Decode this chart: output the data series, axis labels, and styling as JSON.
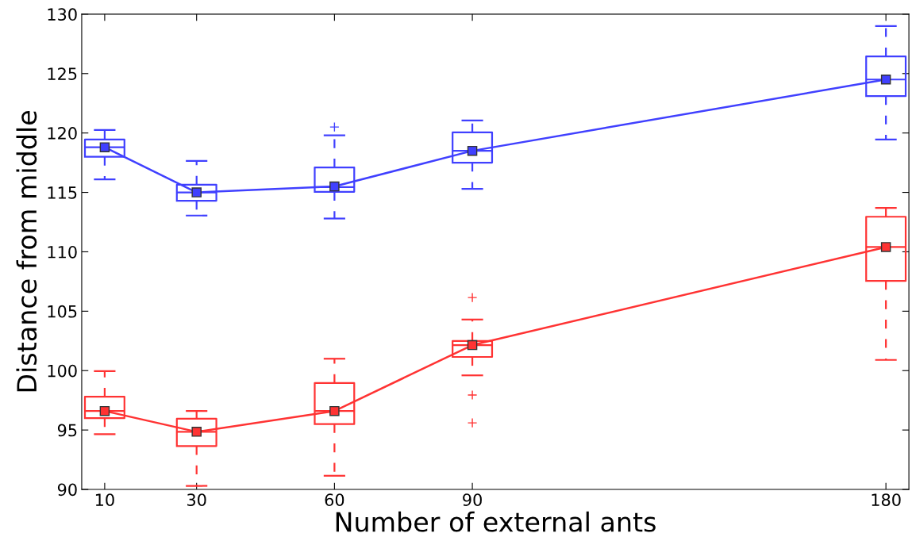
{
  "chart_data": {
    "type": "box",
    "xlabel": "Number of external ants",
    "ylabel": "Distance from middle",
    "xlim": [
      5,
      185
    ],
    "xticks": [
      10,
      30,
      60,
      90,
      180
    ],
    "ylim": [
      90,
      130
    ],
    "yticks": [
      90,
      95,
      100,
      105,
      110,
      115,
      120,
      125,
      130
    ],
    "grid": false,
    "legend": false,
    "marker": "square",
    "line_style": "solid",
    "series": [
      {
        "color": "#4040ff",
        "x": [
          10,
          30,
          60,
          90,
          180
        ],
        "boxes": [
          {
            "low": 116.1,
            "q1": 118.0,
            "median": 118.8,
            "q3": 119.45,
            "high": 120.25
          },
          {
            "low": 113.05,
            "q1": 114.3,
            "median": 115.0,
            "q3": 115.65,
            "high": 117.65
          },
          {
            "low": 112.8,
            "q1": 115.05,
            "median": 115.45,
            "q3": 117.1,
            "high": 119.8,
            "outliers": [
              120.5
            ]
          },
          {
            "low": 115.3,
            "q1": 117.5,
            "median": 118.5,
            "q3": 120.05,
            "high": 121.05
          },
          {
            "low": 119.45,
            "q1": 123.1,
            "median": 124.5,
            "q3": 126.45,
            "high": 129.0
          }
        ]
      },
      {
        "color": "#ff3333",
        "x": [
          10,
          30,
          60,
          90,
          180
        ],
        "boxes": [
          {
            "low": 94.65,
            "q1": 96.0,
            "median": 96.6,
            "q3": 97.8,
            "high": 99.95
          },
          {
            "low": 90.3,
            "q1": 93.65,
            "median": 94.85,
            "q3": 95.95,
            "high": 96.6
          },
          {
            "low": 91.15,
            "q1": 95.5,
            "median": 96.6,
            "q3": 98.95,
            "high": 101.0
          },
          {
            "low": 99.6,
            "q1": 101.15,
            "median": 102.15,
            "q3": 102.5,
            "high": 104.3,
            "outliers": [
              106.15,
              97.95,
              95.6
            ]
          },
          {
            "low": 100.9,
            "q1": 107.55,
            "median": 110.4,
            "q3": 112.95,
            "high": 113.7
          }
        ]
      },
      {
        "type": "line",
        "color": "#4040ff",
        "x": [
          10,
          30,
          60,
          90,
          180
        ],
        "values": [
          118.8,
          115.0,
          115.5,
          118.5,
          124.5
        ]
      },
      {
        "type": "line",
        "color": "#ff3333",
        "x": [
          10,
          30,
          60,
          90,
          180
        ],
        "values": [
          96.6,
          94.85,
          96.6,
          102.15,
          110.4
        ]
      }
    ]
  }
}
